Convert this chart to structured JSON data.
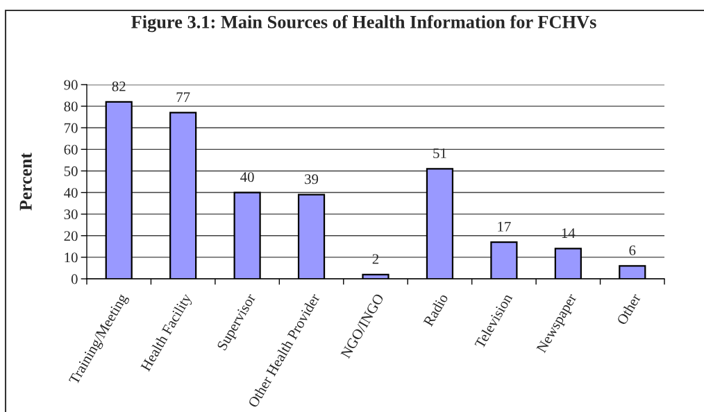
{
  "chart_data": {
    "type": "bar",
    "title": "Figure 3.1: Main Sources of Health Information for FCHVs",
    "ylabel": "Percent",
    "categories": [
      "Training/Meeting",
      "Health Facility",
      "Supervisor",
      "Other Health Provider",
      "NGO/INGO",
      "Radio",
      "Television",
      "Newspaper",
      "Other"
    ],
    "values": [
      82,
      77,
      40,
      39,
      2,
      51,
      17,
      14,
      6
    ],
    "color": "#9999ff",
    "ylim": [
      0,
      90
    ],
    "yticks": [
      0,
      10,
      20,
      30,
      40,
      50,
      60,
      70,
      80,
      90
    ],
    "grid": "y",
    "data_labels": true
  }
}
